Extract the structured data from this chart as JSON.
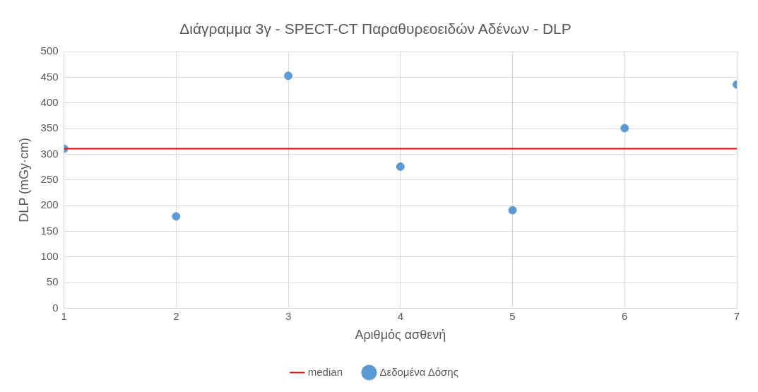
{
  "chart_data": {
    "type": "scatter",
    "title": "Διάγραμμα 3γ - SPECT-CT Παραθυρεοειδών Αδένων - DLP",
    "xlabel": "Αριθμός ασθενή",
    "ylabel": "DLP (mGy·cm)",
    "x": [
      1,
      2,
      3,
      4,
      5,
      6,
      7
    ],
    "series": [
      {
        "name": "Δεδομένα Δόσης",
        "color": "#5b9bd5",
        "values": [
          311,
          179,
          453,
          276,
          191,
          351,
          436
        ]
      },
      {
        "name": "median",
        "type": "line",
        "color": "#ff0000",
        "x": [
          1,
          7
        ],
        "values": [
          311,
          311
        ],
        "marker": "none"
      }
    ],
    "xlim": [
      1,
      7
    ],
    "xticks": [
      1,
      2,
      3,
      4,
      5,
      6,
      7
    ],
    "ylim": [
      0,
      500
    ],
    "yticks": [
      0,
      50,
      100,
      150,
      200,
      250,
      300,
      350,
      400,
      450,
      500
    ],
    "grid": true,
    "legend": "bottom",
    "marker": "circle"
  }
}
